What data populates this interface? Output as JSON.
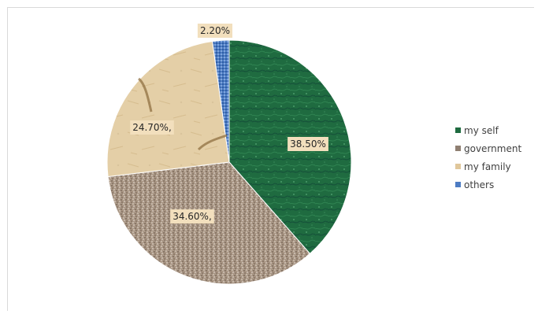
{
  "chart_data": {
    "type": "pie",
    "title": "",
    "categories": [
      "my self",
      "government",
      "my family",
      "others"
    ],
    "values": [
      38.5,
      34.6,
      24.7,
      2.2
    ],
    "data_labels": [
      "38.50%",
      "34.60%,",
      "24.70%,",
      "2.20%"
    ],
    "colors": [
      "#1f6b40",
      "#a89583",
      "#e4cfa7",
      "#4d7cc3"
    ],
    "legend_position": "right"
  },
  "legend": {
    "items": [
      {
        "label": "my self",
        "color": "#1f6b40"
      },
      {
        "label": "government",
        "color": "#8f7f72"
      },
      {
        "label": "my family",
        "color": "#e0c79b"
      },
      {
        "label": "others",
        "color": "#4d7cc3"
      }
    ]
  }
}
